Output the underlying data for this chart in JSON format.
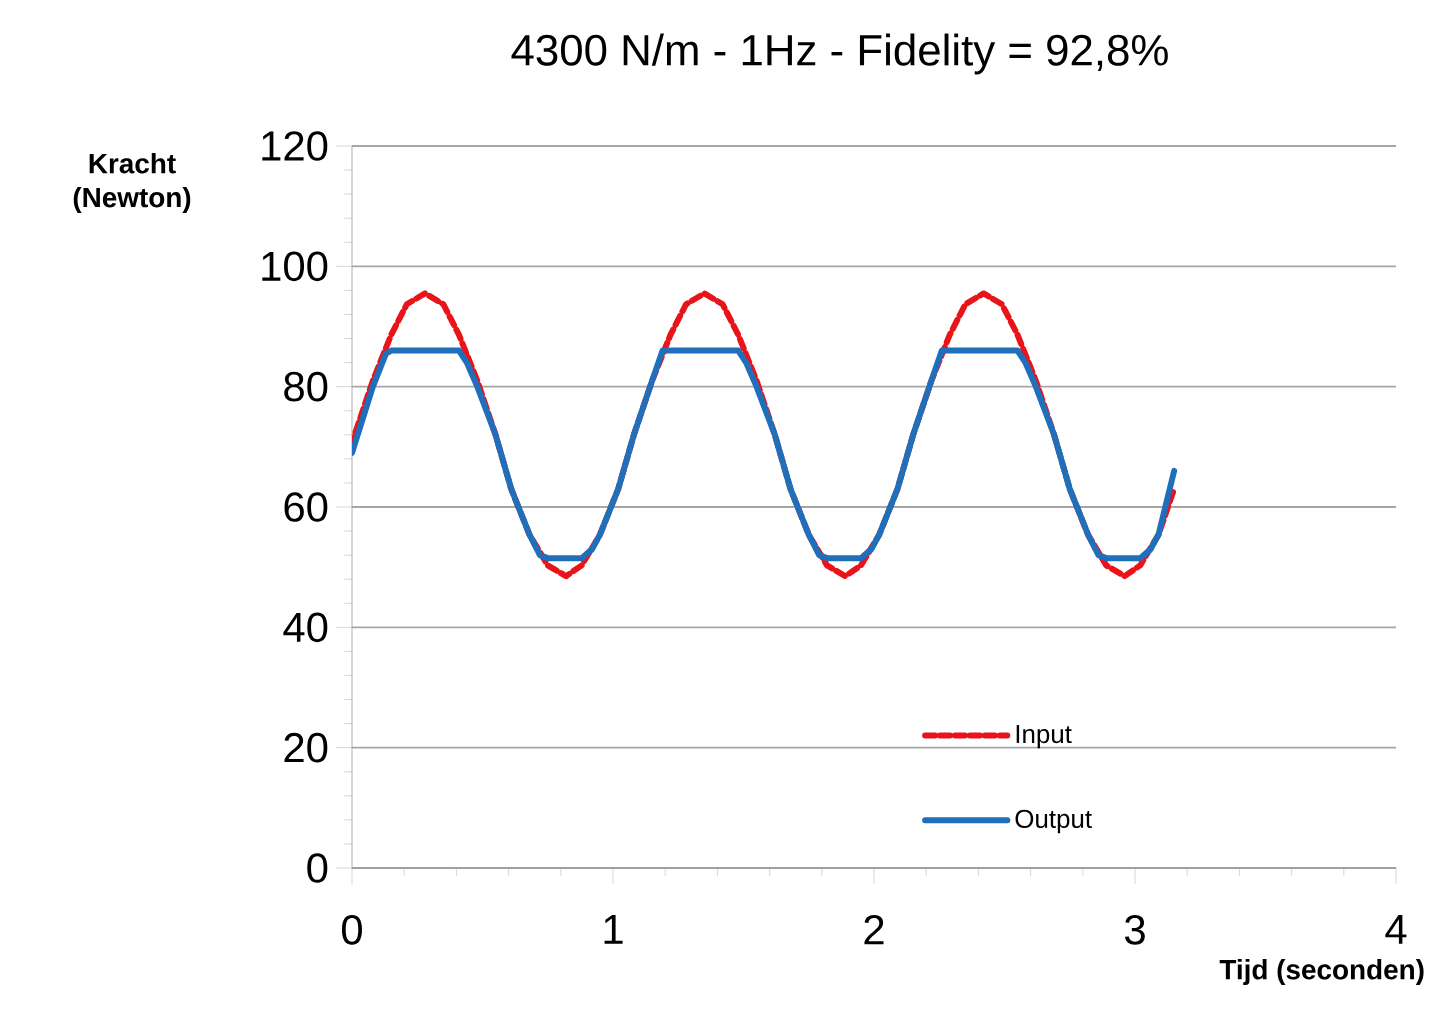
{
  "chart_data": {
    "type": "line",
    "title": "4300 N/m - 1Hz - Fidelity = 92,8%",
    "xlabel": "Tijd (seconden)",
    "ylabel": "Kracht (Newton)",
    "xlim": [
      0,
      4
    ],
    "ylim": [
      0,
      120
    ],
    "xticks": [
      0,
      1,
      2,
      3,
      4
    ],
    "yticks": [
      0,
      20,
      40,
      60,
      80,
      100,
      120
    ],
    "grid": "y",
    "legend": "bottom right",
    "series": [
      {
        "name": "Input",
        "color": "#e8141a",
        "line_style": "dashed",
        "x": [
          0,
          0.01,
          0.08,
          0.15,
          0.21,
          0.28,
          0.35,
          0.41,
          0.48,
          0.55,
          0.61,
          0.68,
          0.75,
          0.82,
          0.88,
          0.95,
          1.02,
          1.08,
          1.15,
          1.22,
          1.28,
          1.35,
          1.42,
          1.48,
          1.55,
          1.62,
          1.68,
          1.75,
          1.82,
          1.89,
          1.95,
          2.02,
          2.09,
          2.15,
          2.22,
          2.29,
          2.35,
          2.42,
          2.49,
          2.55,
          2.62,
          2.69,
          2.75,
          2.82,
          2.89,
          2.96,
          3.02,
          3.09,
          3.15
        ],
        "values": [
          70,
          72,
          81,
          88.6,
          93.7,
          95.5,
          93.7,
          88.6,
          81,
          72,
          63,
          55.4,
          50.3,
          48.5,
          50.3,
          55.4,
          63,
          72,
          81,
          88.6,
          93.7,
          95.5,
          93.7,
          88.6,
          81,
          72,
          63,
          55.4,
          50.3,
          48.5,
          50.3,
          55.4,
          63,
          72,
          81,
          88.6,
          93.7,
          95.5,
          93.7,
          88.6,
          81,
          72,
          63,
          55.4,
          50.3,
          48.5,
          50.3,
          55.4,
          63
        ]
      },
      {
        "name": "Output",
        "color": "#1f6fba",
        "line_style": "solid",
        "x": [
          0,
          0.08,
          0.13,
          0.15,
          0.41,
          0.44,
          0.48,
          0.55,
          0.61,
          0.68,
          0.72,
          0.75,
          0.88,
          0.92,
          0.95,
          1.02,
          1.08,
          1.15,
          1.19,
          1.48,
          1.51,
          1.55,
          1.62,
          1.68,
          1.75,
          1.79,
          1.82,
          1.95,
          1.99,
          2.02,
          2.09,
          2.15,
          2.22,
          2.26,
          2.55,
          2.58,
          2.62,
          2.69,
          2.75,
          2.82,
          2.86,
          2.89,
          3.02,
          3.06,
          3.09,
          3.15
        ],
        "values": [
          69,
          80,
          85.5,
          86,
          86,
          84,
          80,
          72,
          63,
          55.4,
          52,
          51.5,
          51.5,
          53,
          55.4,
          63,
          72,
          81,
          86,
          86,
          84,
          80,
          72,
          63,
          55.4,
          52,
          51.5,
          51.5,
          53,
          55.4,
          63,
          72,
          81,
          86,
          86,
          84,
          80,
          72,
          63,
          55.4,
          52,
          51.5,
          51.5,
          53,
          55.4,
          66
        ]
      }
    ]
  }
}
